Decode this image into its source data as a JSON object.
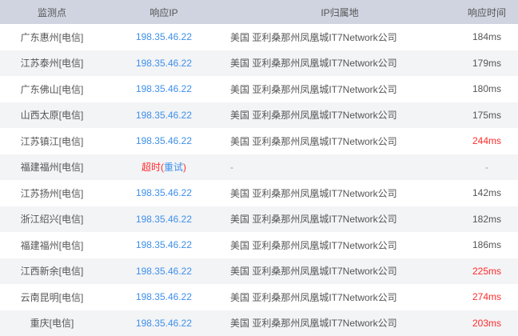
{
  "table": {
    "columns": [
      {
        "key": "node",
        "label": "监测点"
      },
      {
        "key": "ip",
        "label": "响应IP"
      },
      {
        "key": "location",
        "label": "IP归属地"
      },
      {
        "key": "time",
        "label": "响应时间"
      }
    ],
    "rows": [
      {
        "node": "广东惠州[电信]",
        "ip": "198.35.46.22",
        "location": "美国 亚利桑那州凤凰城IT7Network公司",
        "time": "184ms",
        "slow": false
      },
      {
        "node": "江苏泰州[电信]",
        "ip": "198.35.46.22",
        "location": "美国 亚利桑那州凤凰城IT7Network公司",
        "time": "179ms",
        "slow": false
      },
      {
        "node": "广东佛山[电信]",
        "ip": "198.35.46.22",
        "location": "美国 亚利桑那州凤凰城IT7Network公司",
        "time": "180ms",
        "slow": false
      },
      {
        "node": "山西太原[电信]",
        "ip": "198.35.46.22",
        "location": "美国 亚利桑那州凤凰城IT7Network公司",
        "time": "175ms",
        "slow": false
      },
      {
        "node": "江苏镇江[电信]",
        "ip": "198.35.46.22",
        "location": "美国 亚利桑那州凤凰城IT7Network公司",
        "time": "244ms",
        "slow": true
      },
      {
        "node": "福建福州[电信]",
        "timeout": {
          "pre": "超时(",
          "retry": "重试",
          "post": ")"
        },
        "location": "-",
        "time": "-",
        "muted": true
      },
      {
        "node": "江苏扬州[电信]",
        "ip": "198.35.46.22",
        "location": "美国 亚利桑那州凤凰城IT7Network公司",
        "time": "142ms",
        "slow": false
      },
      {
        "node": "浙江绍兴[电信]",
        "ip": "198.35.46.22",
        "location": "美国 亚利桑那州凤凰城IT7Network公司",
        "time": "182ms",
        "slow": false
      },
      {
        "node": "福建福州[电信]",
        "ip": "198.35.46.22",
        "location": "美国 亚利桑那州凤凰城IT7Network公司",
        "time": "186ms",
        "slow": false
      },
      {
        "node": "江西新余[电信]",
        "ip": "198.35.46.22",
        "location": "美国 亚利桑那州凤凰城IT7Network公司",
        "time": "225ms",
        "slow": true
      },
      {
        "node": "云南昆明[电信]",
        "ip": "198.35.46.22",
        "location": "美国 亚利桑那州凤凰城IT7Network公司",
        "time": "274ms",
        "slow": true
      },
      {
        "node": "重庆[电信]",
        "ip": "198.35.46.22",
        "location": "美国 亚利桑那州凤凰城IT7Network公司",
        "time": "203ms",
        "slow": true
      }
    ]
  },
  "colors": {
    "header_bg": "#cfd4e0",
    "alt_row_bg": "#f3f4f6",
    "link_blue": "#3e8fe9",
    "alert_red": "#ff2b2b",
    "text_gray": "#555555",
    "muted_gray": "#999999"
  }
}
